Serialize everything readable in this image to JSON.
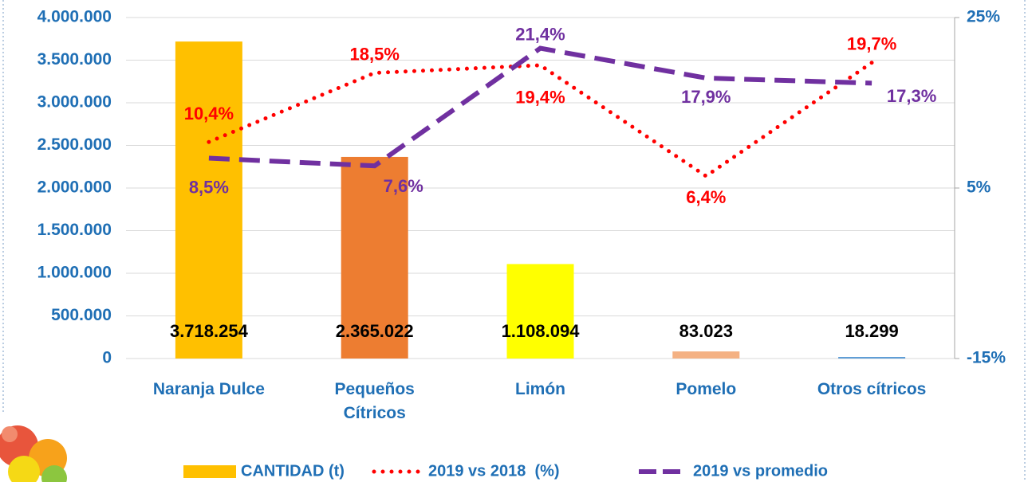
{
  "chart_data": {
    "type": "bar",
    "categories": [
      "Naranja Dulce",
      "Pequeños Cítricos",
      "Limón",
      "Pomelo",
      "Otros cítricos"
    ],
    "series": [
      {
        "name": "CANTIDAD (t)",
        "type": "bar",
        "colors": [
          "#FFC000",
          "#ED7D31",
          "#FFFF00",
          "#F4B183",
          "#5B9BD5"
        ],
        "values": [
          3718254,
          2365022,
          1108094,
          83023,
          18299
        ],
        "value_labels": [
          "3.718.254",
          "2.365.022",
          "1.108.094",
          "83.023",
          "18.299"
        ]
      },
      {
        "name": "2019 vs 2018  (%)",
        "type": "line",
        "axis": "y2",
        "color": "#FF0000",
        "style": "dotted",
        "values": [
          10.4,
          18.5,
          19.4,
          6.4,
          19.7
        ],
        "value_labels": [
          "10,4%",
          "18,5%",
          "19,4%",
          "6,4%",
          "19,7%"
        ]
      },
      {
        "name": "2019 vs promedio",
        "type": "line",
        "axis": "y2",
        "color": "#7030A0",
        "style": "dashed",
        "values": [
          8.5,
          7.6,
          21.4,
          17.9,
          17.3
        ],
        "value_labels": [
          "8,5%",
          "7,6%",
          "21,4%",
          "17,9%",
          "17,3%"
        ]
      }
    ],
    "ylim": [
      0,
      4000000
    ],
    "yticks": [
      0,
      {
        "value": 500000,
        "label": "500.000"
      },
      {
        "value": 1000000,
        "label": "1.000.000"
      },
      {
        "value": 1500000,
        "label": "1.500.000"
      },
      {
        "value": 2000000,
        "label": "2.000.000"
      },
      {
        "value": 2500000,
        "label": "2.500.000"
      },
      {
        "value": 3000000,
        "label": "3.000.000"
      },
      {
        "value": 3500000,
        "label": "3.500.000"
      },
      {
        "value": 4000000,
        "label": "4.000.000"
      }
    ],
    "y2lim": [
      -15,
      25
    ],
    "y2ticks": [
      {
        "value": -15,
        "label": "-15%"
      },
      {
        "value": 5,
        "label": "5%"
      },
      {
        "value": 25,
        "label": "25%"
      }
    ],
    "grid": true,
    "legend": "bottom"
  }
}
